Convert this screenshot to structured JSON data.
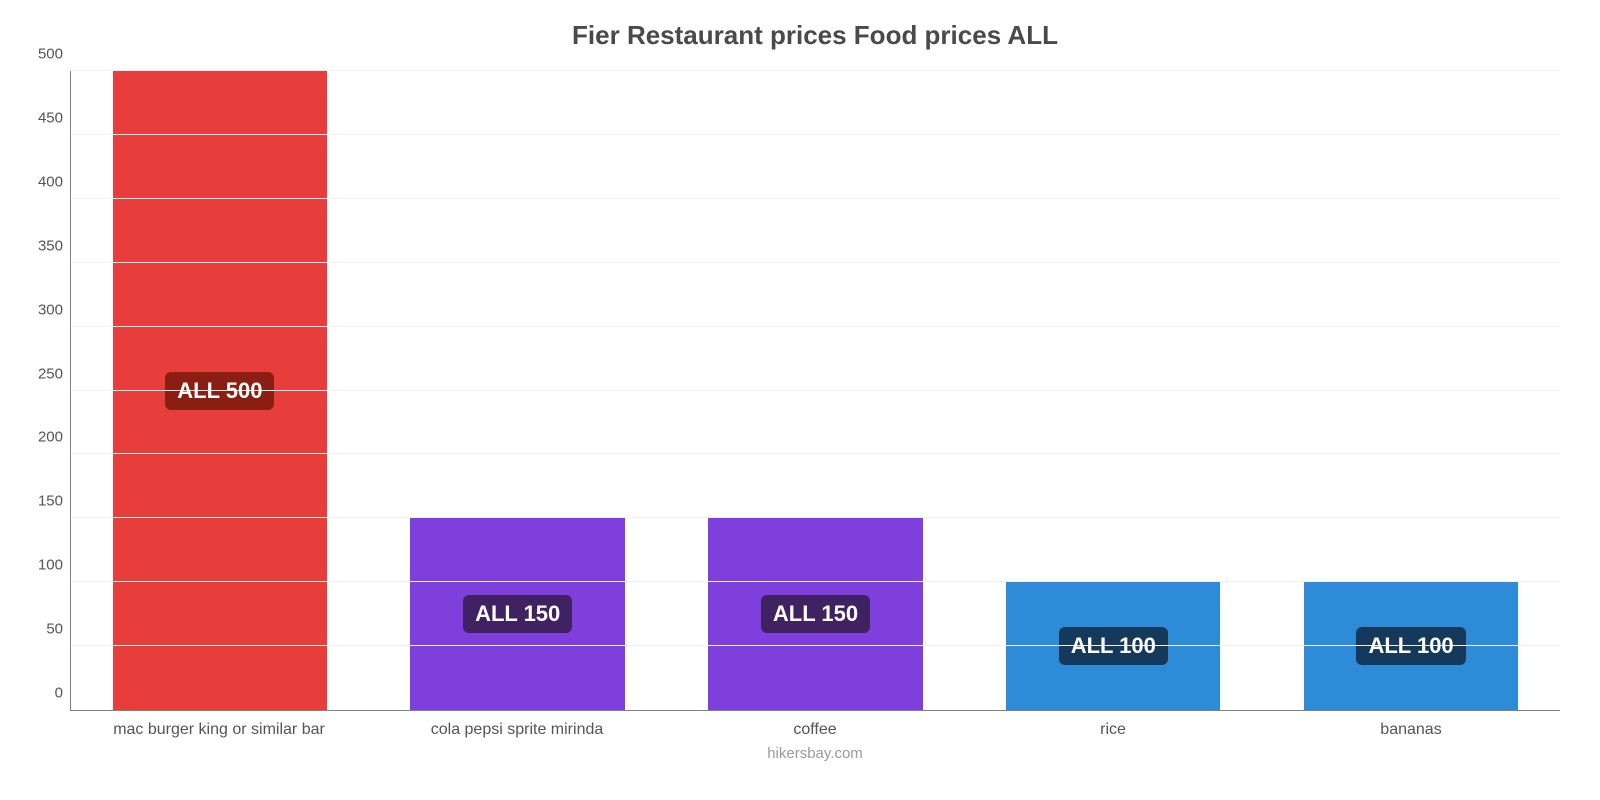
{
  "chart": {
    "type": "bar",
    "title": "Fier Restaurant prices Food prices ALL",
    "title_fontsize": 26,
    "title_color": "#4a4a4a",
    "footer": "hikersbay.com",
    "footer_color": "#9a9a9a",
    "background_color": "#ffffff",
    "grid_color": "#f2f2f2",
    "axis_color": "#808080",
    "ymax": 500,
    "ytick_step": 50,
    "yticks": [
      0,
      50,
      100,
      150,
      200,
      250,
      300,
      350,
      400,
      450,
      500
    ],
    "ytick_fontsize": 15,
    "xlabel_fontsize": 16,
    "label_fontsize": 22,
    "bar_width_pct": 72,
    "bars": [
      {
        "category": "mac burger king or similar bar",
        "value": 500,
        "label": "ALL 500",
        "color": "#e73d3b",
        "badge_bg": "#8b1e13"
      },
      {
        "category": "cola pepsi sprite mirinda",
        "value": 150,
        "label": "ALL 150",
        "color": "#7e3fdd",
        "badge_bg": "#402162"
      },
      {
        "category": "coffee",
        "value": 150,
        "label": "ALL 150",
        "color": "#7e3fdd",
        "badge_bg": "#402162"
      },
      {
        "category": "rice",
        "value": 100,
        "label": "ALL 100",
        "color": "#2d8bd8",
        "badge_bg": "#15395b"
      },
      {
        "category": "bananas",
        "value": 100,
        "label": "ALL 100",
        "color": "#2d8bd8",
        "badge_bg": "#15395b"
      }
    ]
  }
}
